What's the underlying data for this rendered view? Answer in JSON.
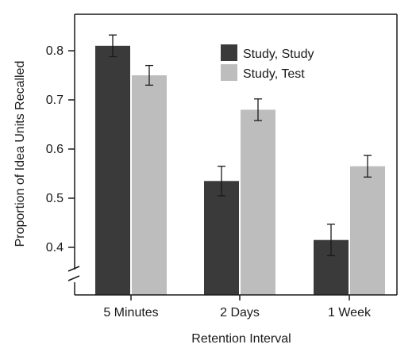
{
  "chart_data": {
    "type": "bar",
    "xlabel": "Retention Interval",
    "ylabel": "Proportion of Idea Units Recalled",
    "categories": [
      "5 Minutes",
      "2 Days",
      "1 Week"
    ],
    "series": [
      {
        "name": "Study, Study",
        "values": [
          0.81,
          0.535,
          0.415
        ],
        "errors": [
          0.022,
          0.03,
          0.032
        ],
        "color": "#3a3a3a"
      },
      {
        "name": "Study, Test",
        "values": [
          0.75,
          0.68,
          0.565
        ],
        "errors": [
          0.02,
          0.022,
          0.022
        ],
        "color": "#bdbdbd"
      }
    ],
    "ylim": [
      0.35,
      0.85
    ],
    "yticks": [
      0.4,
      0.5,
      0.6,
      0.7,
      0.8
    ],
    "ytick_labels": [
      "0.4",
      "0.5",
      "0.6",
      "0.7",
      "0.8"
    ],
    "axis_break": true,
    "grid": false,
    "legend_position": "top-right"
  }
}
